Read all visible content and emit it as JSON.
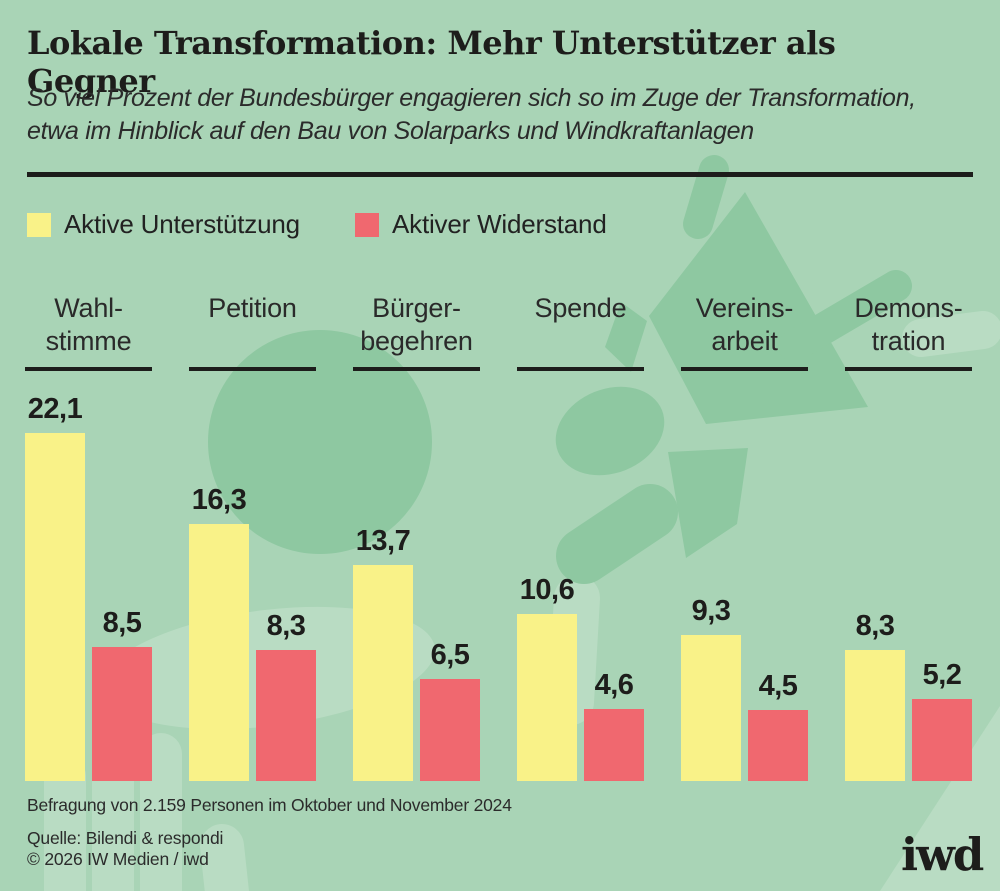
{
  "header": {
    "title": "Lokale Transformation: Mehr Unterstützer als Gegner",
    "subtitle_line1": "So viel Prozent der Bundesbürger engagieren sich so im Zuge der Transformation,",
    "subtitle_line2": "etwa im Hinblick auf den Bau von Solarparks und Windkraftanlagen"
  },
  "legend": {
    "support_label": "Aktive Unterstützung",
    "oppose_label": "Aktiver Widerstand"
  },
  "chart_data": {
    "type": "bar",
    "title": "Lokale Transformation: Mehr Unterstützer als Gegner",
    "unit": "Prozent der Bundesbürger",
    "categories": [
      "Wahlstimme",
      "Petition",
      "Bürgerbegehren",
      "Spende",
      "Vereinsarbeit",
      "Demonstration"
    ],
    "category_display": [
      [
        "Wahl-",
        "stimme"
      ],
      [
        "Petition",
        ""
      ],
      [
        "Bürger-",
        "begehren"
      ],
      [
        "Spende",
        ""
      ],
      [
        "Vereins-",
        "arbeit"
      ],
      [
        "Demons-",
        "tration"
      ]
    ],
    "series": [
      {
        "name": "Aktive Unterstützung",
        "color": "#f9f288",
        "values": [
          22.1,
          16.3,
          13.7,
          10.6,
          9.3,
          8.3
        ],
        "display": [
          "22,1",
          "16,3",
          "13,7",
          "10,6",
          "9,3",
          "8,3"
        ]
      },
      {
        "name": "Aktiver Widerstand",
        "color": "#f0686f",
        "values": [
          8.5,
          8.3,
          6.5,
          4.6,
          4.5,
          5.2
        ],
        "display": [
          "8,5",
          "8,3",
          "6,5",
          "4,6",
          "4,5",
          "5,2"
        ]
      }
    ],
    "ylim": [
      0,
      22.1
    ],
    "grid": false,
    "value_labels": true,
    "legend_position": "top-left"
  },
  "footer": {
    "note": "Befragung von 2.159 Personen im Oktober und November 2024",
    "source": "Quelle: Bilendi & respondi",
    "copyright": "© 2026 IW Medien / iwd",
    "logo": "iwd"
  },
  "colors": {
    "background": "#a9d4b6",
    "support": "#f9f288",
    "oppose": "#f0686f",
    "text": "#222222",
    "illustration_dark": "#8ec8a1",
    "illustration_light": "#b9dcc3"
  }
}
